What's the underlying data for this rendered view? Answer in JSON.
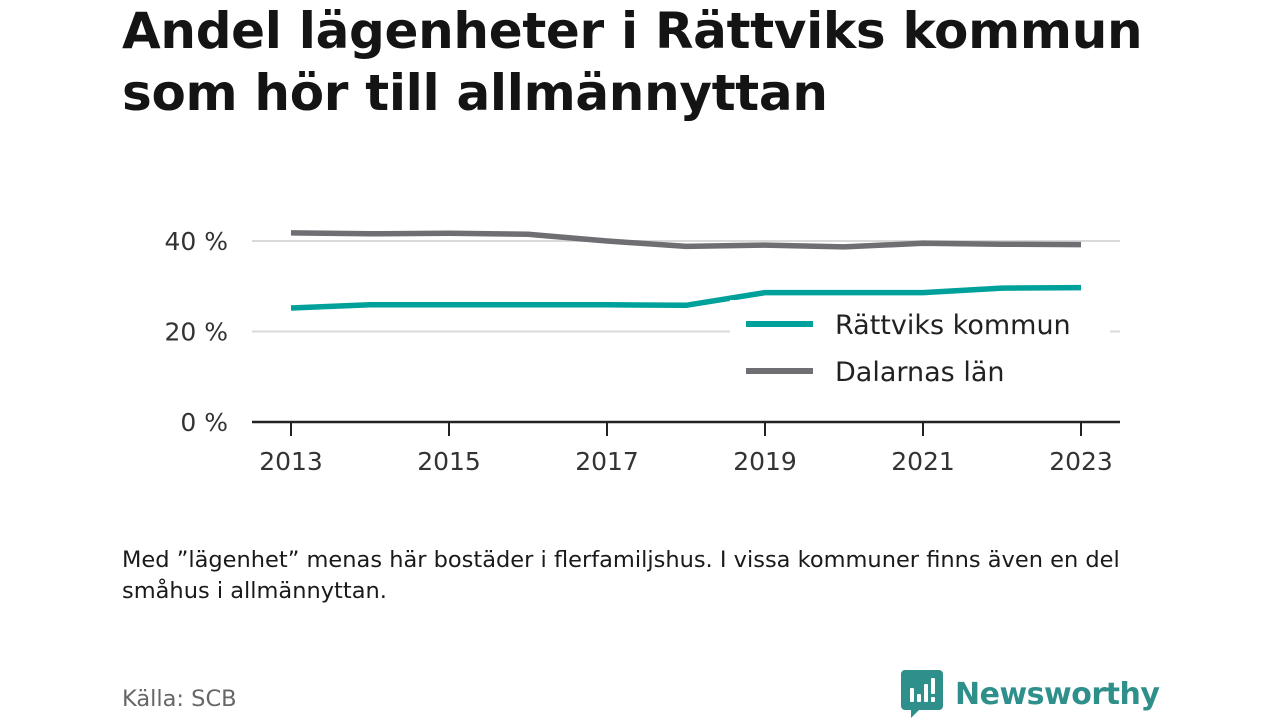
{
  "title": "Andel lägenheter i Rättviks kommun som hör till allmännyttan",
  "note": "Med ”lägenhet” menas här bostäder i flerfamiljshus. I vissa kommuner finns även en del småhus i allmännyttan.",
  "source": "Källa: SCB",
  "brand": {
    "name": "Newsworthy",
    "color": "#2f8f8b"
  },
  "chart_data": {
    "type": "line",
    "x": [
      2013,
      2014,
      2015,
      2016,
      2017,
      2018,
      2019,
      2020,
      2021,
      2022,
      2023
    ],
    "x_tick_labels": [
      "2013",
      "2015",
      "2017",
      "2019",
      "2021",
      "2023"
    ],
    "x_tick_values": [
      2013,
      2015,
      2017,
      2019,
      2021,
      2023
    ],
    "y_tick_labels": [
      "0 %",
      "20 %",
      "40 %"
    ],
    "y_tick_values": [
      0,
      20,
      40
    ],
    "ylim": [
      0,
      40
    ],
    "grid": true,
    "legend_position": "right",
    "series": [
      {
        "name": "Rättviks kommun",
        "color": "#00a19a",
        "values": [
          25.2,
          25.9,
          25.9,
          25.9,
          25.9,
          25.8,
          28.6,
          28.6,
          28.6,
          29.6,
          29.7
        ]
      },
      {
        "name": "Dalarnas län",
        "color": "#6e6e73",
        "values": [
          41.8,
          41.6,
          41.7,
          41.5,
          40.0,
          38.8,
          39.1,
          38.7,
          39.5,
          39.3,
          39.2
        ]
      }
    ]
  }
}
